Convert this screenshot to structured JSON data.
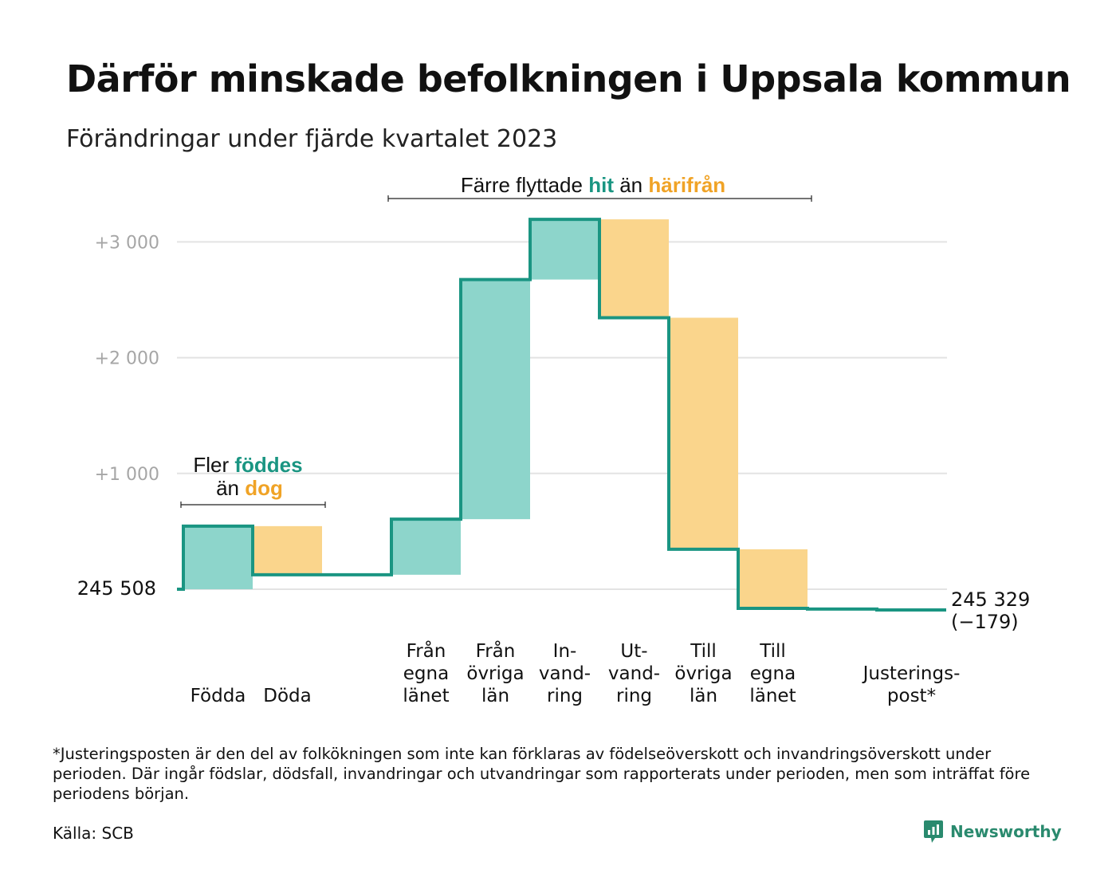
{
  "header": {
    "title": "Därför minskade befolkningen i Uppsala kommun",
    "subtitle": "Förändringar under fjärde kvartalet 2023"
  },
  "colors": {
    "increase": "#8dd5cb",
    "decrease": "#fad58c",
    "line": "#1a9582",
    "grid": "#e3e3e3",
    "tick_text": "#a6a6a6",
    "hit_text": "#1a9582",
    "harifran_text": "#f0a326"
  },
  "chart_data": {
    "type": "waterfall",
    "baseline": 0,
    "start_label": "245 508",
    "end_label": "245 329",
    "end_change_label": "(−179)",
    "yticks": [
      {
        "value": 1000,
        "label": "+1 000"
      },
      {
        "value": 2000,
        "label": "+2 000"
      },
      {
        "value": 3000,
        "label": "+3 000"
      }
    ],
    "ylim": [
      -300,
      3300
    ],
    "grid": true,
    "steps": [
      {
        "label": [
          "Födda"
        ],
        "value": 545,
        "kind": "increase"
      },
      {
        "label": [
          "Döda"
        ],
        "value": -420,
        "kind": "decrease"
      },
      {
        "label": [],
        "value": 0,
        "kind": "gap"
      },
      {
        "label": [
          "Från",
          "egna",
          "länet"
        ],
        "value": 480,
        "kind": "increase"
      },
      {
        "label": [
          "Från",
          "övriga",
          "län"
        ],
        "value": 2070,
        "kind": "increase"
      },
      {
        "label": [
          "In-",
          "vand-",
          "ring"
        ],
        "value": 520,
        "kind": "increase"
      },
      {
        "label": [
          "Ut-",
          "vand-",
          "ring"
        ],
        "value": -850,
        "kind": "decrease"
      },
      {
        "label": [
          "Till",
          "övriga",
          "län"
        ],
        "value": -2000,
        "kind": "decrease"
      },
      {
        "label": [
          "Till",
          "egna",
          "länet"
        ],
        "value": -510,
        "kind": "decrease"
      },
      {
        "label": [],
        "value": -6,
        "kind": "flat"
      },
      {
        "label": [
          "Justerings-",
          "post*"
        ],
        "value": -8,
        "kind": "flat"
      }
    ],
    "annotations": {
      "births": {
        "prefix": "Fler",
        "hit": "föddes",
        "middle": "än",
        "away": "dog"
      },
      "moves": {
        "prefix": "Färre flyttade",
        "hit": "hit",
        "middle": "än",
        "away": "härifrån"
      }
    }
  },
  "footnote": "*Justeringsposten är den del av folkökningen som inte kan förklaras av födelseöverskott och invandringsöverskott under perioden. Där ingår födslar, dödsfall, invandringar och utvandringar som rapporterats under perioden, men som inträffat före periodens början.",
  "source": {
    "label": "Källa:",
    "value": "SCB"
  },
  "brand": {
    "name": "Newsworthy",
    "icon": "newsworthy-logo-icon"
  }
}
